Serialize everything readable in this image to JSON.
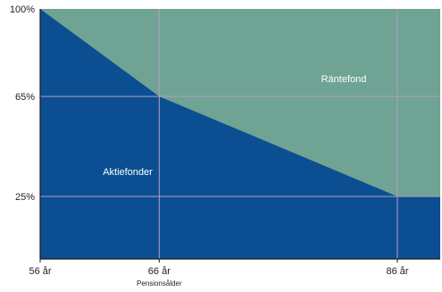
{
  "chart_data": {
    "type": "area",
    "title": "",
    "xlabel": "",
    "ylabel": "",
    "xlim": [
      56,
      86
    ],
    "ylim": [
      0,
      100
    ],
    "grid": true,
    "x": [
      56,
      66,
      86
    ],
    "series": [
      {
        "name": "Aktiefonder",
        "values": [
          100,
          65,
          25
        ],
        "color": "#0b4f92"
      },
      {
        "name": "Räntefond",
        "values": [
          0,
          35,
          75
        ],
        "color": "#6fa394"
      }
    ],
    "y_ticks": [
      {
        "value": 100,
        "label": "100%"
      },
      {
        "value": 65,
        "label": "65%"
      },
      {
        "value": 25,
        "label": "25%"
      }
    ],
    "x_ticks": [
      {
        "value": 56,
        "label": "56 år"
      },
      {
        "value": 66,
        "label": "66 år",
        "sublabel": "Pensionsålder"
      },
      {
        "value": 86,
        "label": "86 år"
      }
    ],
    "region_labels": {
      "lower": "Aktiefonder",
      "upper": "Räntefond"
    },
    "colors": {
      "lower": "#0b4f92",
      "upper": "#6fa394",
      "grid": "#b99bc4",
      "axis": "#1a1a1a"
    }
  }
}
